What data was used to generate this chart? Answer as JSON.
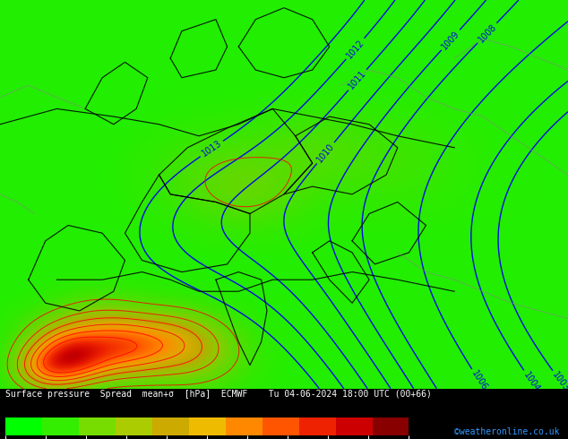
{
  "title_text": "Surface pressure  Spread  mean+σ  [hPa]  ECMWF    Tu 04-06-2024 18:00 UTC (00+66)",
  "watermark": "©weatheronline.co.uk",
  "cbar_ticks": [
    0,
    2,
    4,
    6,
    8,
    10,
    12,
    14,
    16,
    18,
    20
  ],
  "cbar_colors": [
    "#00FF00",
    "#33EE00",
    "#77DD00",
    "#AACC00",
    "#CCAA00",
    "#EEBB00",
    "#FF8800",
    "#FF5500",
    "#EE2200",
    "#CC0000",
    "#880000"
  ],
  "spread_colormap": [
    [
      0.0,
      "#00FF00"
    ],
    [
      0.1,
      "#22EE00"
    ],
    [
      0.2,
      "#55DD00"
    ],
    [
      0.3,
      "#88CC00"
    ],
    [
      0.4,
      "#BBAA00"
    ],
    [
      0.5,
      "#DDAA00"
    ],
    [
      0.6,
      "#FF8800"
    ],
    [
      0.7,
      "#FF5500"
    ],
    [
      0.8,
      "#EE2200"
    ],
    [
      0.9,
      "#CC0000"
    ],
    [
      1.0,
      "#880000"
    ]
  ],
  "fig_width": 6.34,
  "fig_height": 4.9,
  "dpi": 100,
  "map_border_color": "#000000",
  "isobar_color": "#0000EE",
  "border_color": "#000000",
  "coast_color": "#888888",
  "red_contour_color": "#FF0000",
  "watermark_color": "#3399FF",
  "bottom_bg": "#000000",
  "text_color": "#FFFFFF"
}
